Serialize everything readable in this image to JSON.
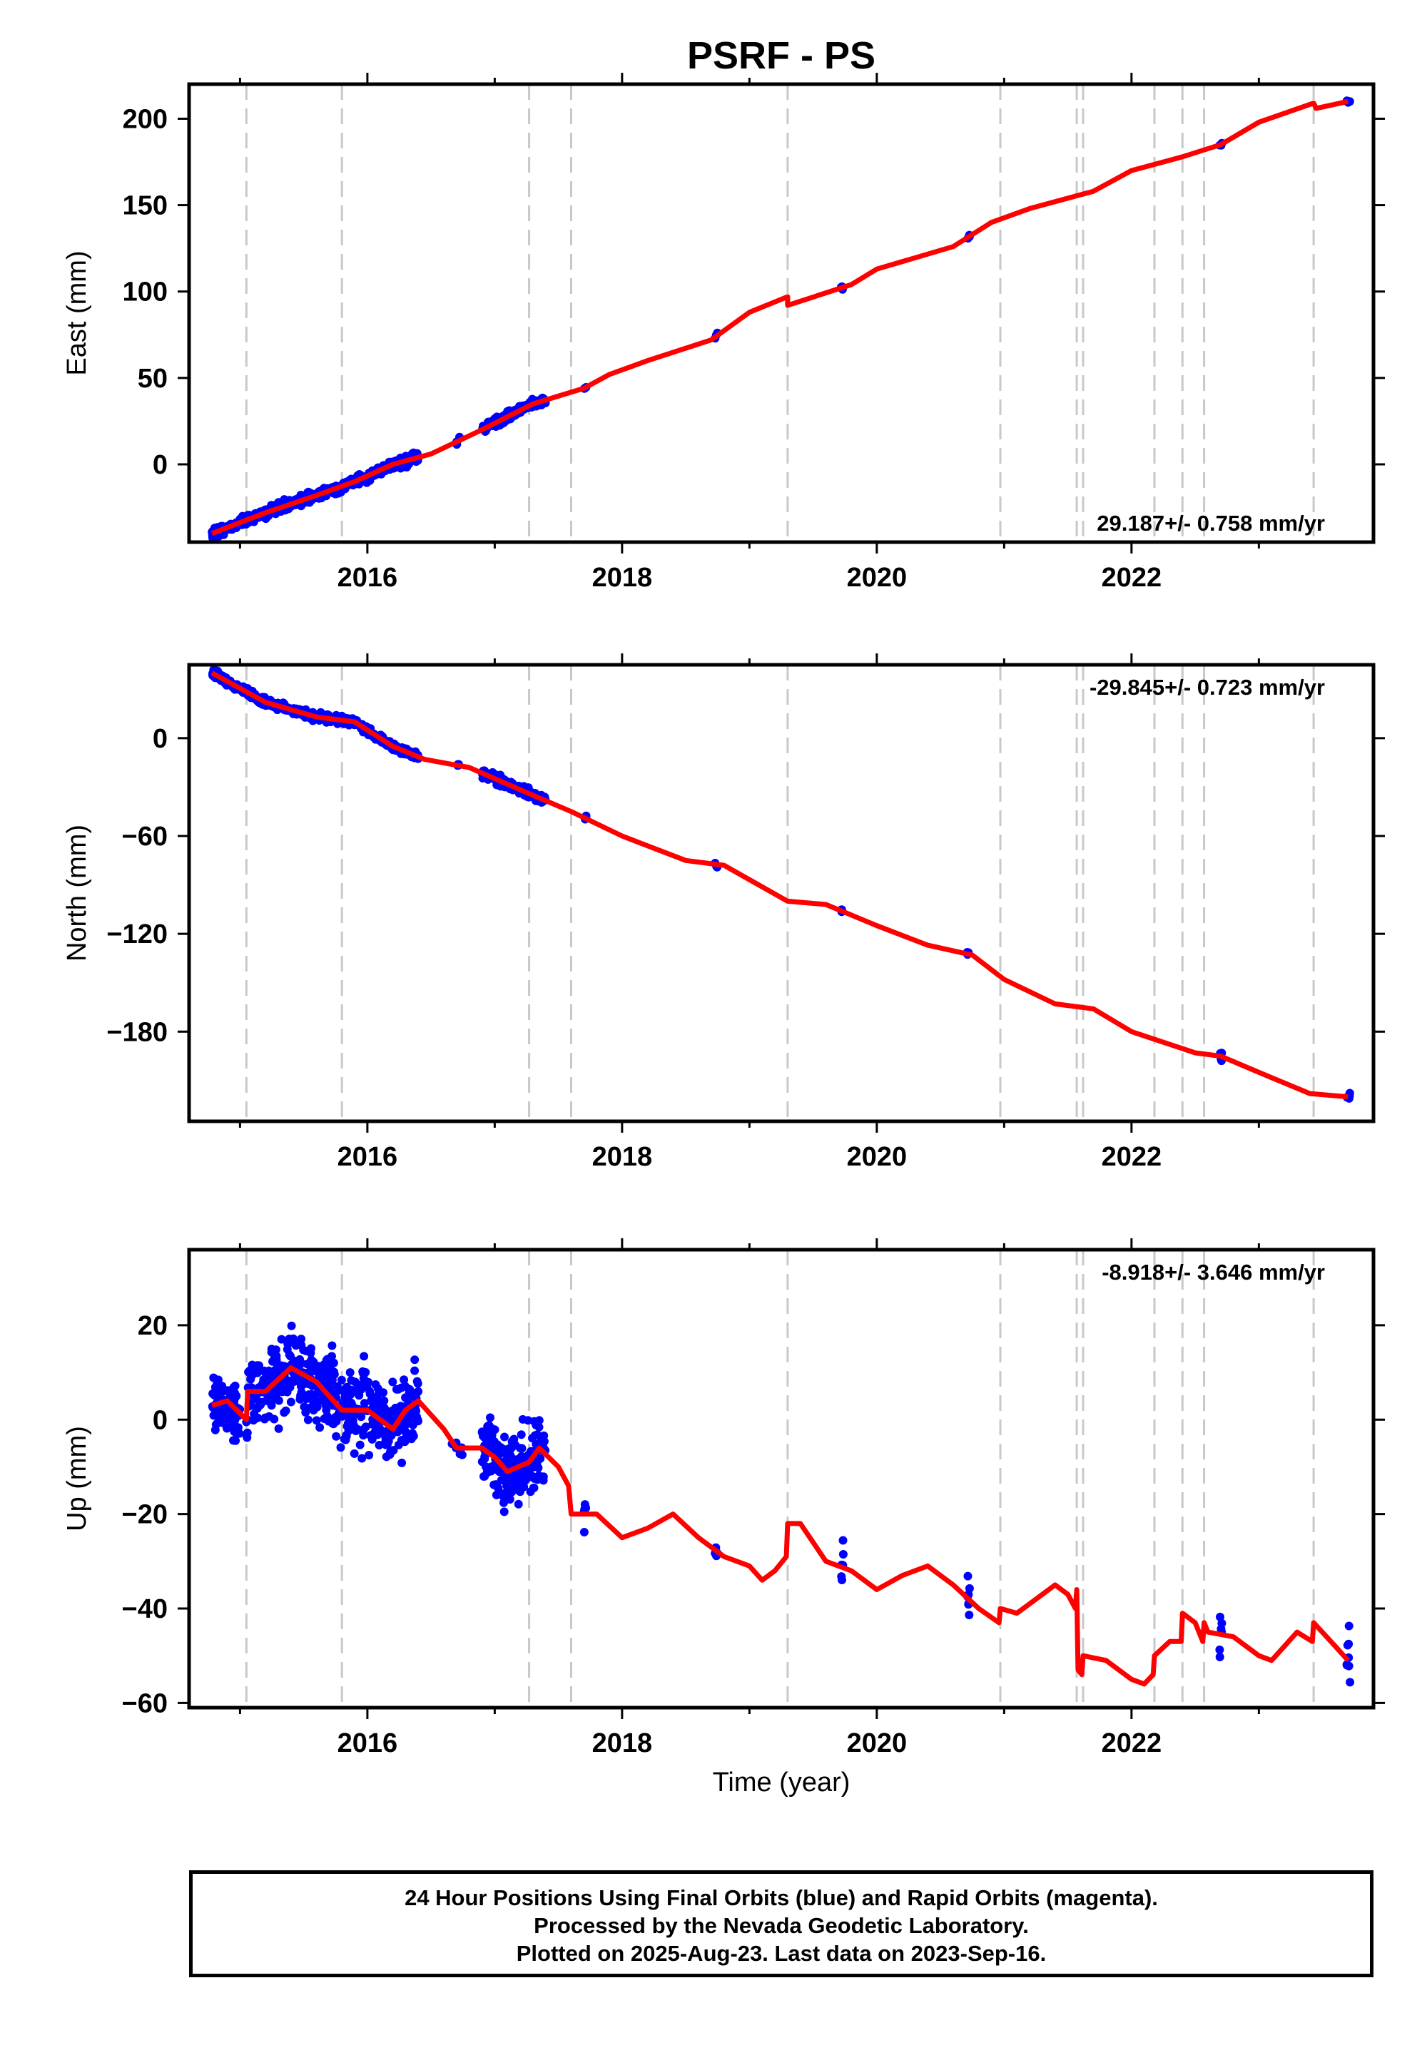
{
  "title": "PSRF - PS",
  "footer": {
    "line1": "24 Hour Positions Using Final Orbits (blue) and Rapid Orbits (magenta).",
    "line2": "Processed by the Nevada Geodetic Laboratory.",
    "line3": "Plotted on 2025-Aug-23. Last data on 2023-Sep-16."
  },
  "colors": {
    "data_points": "#0000ff",
    "model_line": "#ff0000",
    "event_lines": "#c8c8c8",
    "frame": "#000000"
  },
  "chart_data": [
    {
      "type": "scatter",
      "component": "east",
      "ylabel": "East (mm)",
      "xlim": [
        2014.6,
        2023.9
      ],
      "ylim": [
        -45,
        220
      ],
      "x_ticks": [
        2016,
        2018,
        2020,
        2022
      ],
      "y_ticks": [
        0,
        50,
        100,
        150,
        200
      ],
      "grid": false,
      "rate_label": "29.187+/- 0.758 mm/yr",
      "event_lines_x": [
        2015.05,
        2015.8,
        2017.27,
        2017.6,
        2019.3,
        2020.97,
        2021.57,
        2021.62,
        2022.18,
        2022.4,
        2022.57,
        2023.43
      ],
      "model": [
        [
          2014.78,
          -40
        ],
        [
          2015.2,
          -28
        ],
        [
          2015.6,
          -18
        ],
        [
          2015.9,
          -10
        ],
        [
          2016.2,
          0
        ],
        [
          2016.5,
          6
        ],
        [
          2016.9,
          20
        ],
        [
          2017.3,
          35
        ],
        [
          2017.7,
          44
        ],
        [
          2017.9,
          52
        ],
        [
          2018.2,
          60
        ],
        [
          2018.7,
          72
        ],
        [
          2019.0,
          88
        ],
        [
          2019.3,
          97
        ],
        [
          2019.3,
          92
        ],
        [
          2019.8,
          104
        ],
        [
          2020.0,
          113
        ],
        [
          2020.6,
          126
        ],
        [
          2020.9,
          140
        ],
        [
          2021.2,
          148
        ],
        [
          2021.5,
          154
        ],
        [
          2021.7,
          158
        ],
        [
          2022.0,
          170
        ],
        [
          2022.4,
          178
        ],
        [
          2022.7,
          185
        ],
        [
          2023.0,
          198
        ],
        [
          2023.43,
          209
        ],
        [
          2023.45,
          206
        ],
        [
          2023.7,
          210
        ]
      ],
      "points": [
        {
          "range": [
            2014.78,
            2016.4
          ],
          "density": 450,
          "spread": 3.0
        },
        {
          "range": [
            2016.7,
            2016.73
          ],
          "density": 4,
          "spread": 2.0
        },
        {
          "range": [
            2016.9,
            2017.4
          ],
          "density": 200,
          "spread": 2.5
        },
        {
          "range": [
            2017.7,
            2017.72
          ],
          "density": 3,
          "spread": 1.5
        },
        {
          "range": [
            2018.73,
            2018.75
          ],
          "density": 3,
          "spread": 1.5
        },
        {
          "range": [
            2019.72,
            2019.74
          ],
          "density": 3,
          "spread": 1.5
        },
        {
          "range": [
            2020.71,
            2020.73
          ],
          "density": 3,
          "spread": 1.5
        },
        {
          "range": [
            2022.69,
            2022.71
          ],
          "density": 3,
          "spread": 1.5
        },
        {
          "range": [
            2023.69,
            2023.72
          ],
          "density": 3,
          "spread": 1.5
        }
      ]
    },
    {
      "type": "scatter",
      "component": "north",
      "ylabel": "North (mm)",
      "xlim": [
        2014.6,
        2023.9
      ],
      "ylim": [
        -235,
        45
      ],
      "x_ticks": [
        2016,
        2018,
        2020,
        2022
      ],
      "y_ticks": [
        0,
        -60,
        -120,
        -180
      ],
      "grid": false,
      "rate_label": "-29.845+/- 0.723 mm/yr",
      "event_lines_x": [
        2015.05,
        2015.8,
        2017.27,
        2017.6,
        2019.3,
        2020.97,
        2021.57,
        2021.62,
        2022.18,
        2022.4,
        2022.57,
        2023.43
      ],
      "model": [
        [
          2014.78,
          40
        ],
        [
          2015.2,
          22
        ],
        [
          2015.6,
          13
        ],
        [
          2015.9,
          10
        ],
        [
          2016.2,
          -5
        ],
        [
          2016.45,
          -13
        ],
        [
          2016.8,
          -18
        ],
        [
          2017.3,
          -35
        ],
        [
          2017.6,
          -45
        ],
        [
          2018.0,
          -60
        ],
        [
          2018.5,
          -75
        ],
        [
          2018.8,
          -78
        ],
        [
          2019.3,
          -100
        ],
        [
          2019.6,
          -102
        ],
        [
          2020.0,
          -115
        ],
        [
          2020.4,
          -127
        ],
        [
          2020.75,
          -133
        ],
        [
          2021.0,
          -148
        ],
        [
          2021.4,
          -163
        ],
        [
          2021.7,
          -166
        ],
        [
          2022.0,
          -180
        ],
        [
          2022.5,
          -193
        ],
        [
          2022.7,
          -195
        ],
        [
          2023.0,
          -205
        ],
        [
          2023.4,
          -218
        ],
        [
          2023.7,
          -220
        ]
      ],
      "points": [
        {
          "range": [
            2014.78,
            2016.4
          ],
          "density": 450,
          "spread": 2.5
        },
        {
          "range": [
            2016.7,
            2016.73
          ],
          "density": 4,
          "spread": 2.0
        },
        {
          "range": [
            2016.9,
            2017.4
          ],
          "density": 200,
          "spread": 2.5
        },
        {
          "range": [
            2017.7,
            2017.72
          ],
          "density": 3,
          "spread": 2.0
        },
        {
          "range": [
            2018.73,
            2018.75
          ],
          "density": 3,
          "spread": 2.0
        },
        {
          "range": [
            2019.72,
            2019.74
          ],
          "density": 3,
          "spread": 2.0
        },
        {
          "range": [
            2020.71,
            2020.73
          ],
          "density": 3,
          "spread": 2.0
        },
        {
          "range": [
            2022.69,
            2022.71
          ],
          "density": 4,
          "spread": 3.0
        },
        {
          "range": [
            2023.69,
            2023.72
          ],
          "density": 4,
          "spread": 3.0
        }
      ]
    },
    {
      "type": "scatter",
      "component": "up",
      "ylabel": "Up (mm)",
      "xlabel": "Time (year)",
      "xlim": [
        2014.6,
        2023.9
      ],
      "ylim": [
        -61,
        36
      ],
      "x_ticks": [
        2016,
        2018,
        2020,
        2022
      ],
      "y_ticks": [
        20,
        0,
        -20,
        -40,
        -60
      ],
      "grid": false,
      "rate_label": "-8.918+/- 3.646 mm/yr",
      "event_lines_x": [
        2015.05,
        2015.8,
        2017.27,
        2017.6,
        2019.3,
        2020.97,
        2021.57,
        2021.62,
        2022.18,
        2022.4,
        2022.57,
        2023.43
      ],
      "model": [
        [
          2014.78,
          3
        ],
        [
          2014.9,
          4
        ],
        [
          2015.05,
          0
        ],
        [
          2015.06,
          6
        ],
        [
          2015.2,
          6
        ],
        [
          2015.4,
          11
        ],
        [
          2015.6,
          8
        ],
        [
          2015.8,
          2
        ],
        [
          2016.0,
          2
        ],
        [
          2016.1,
          0
        ],
        [
          2016.2,
          -2
        ],
        [
          2016.3,
          2
        ],
        [
          2016.4,
          4
        ],
        [
          2016.6,
          -2
        ],
        [
          2016.7,
          -6
        ],
        [
          2016.9,
          -6
        ],
        [
          2017.0,
          -8
        ],
        [
          2017.1,
          -11
        ],
        [
          2017.27,
          -9
        ],
        [
          2017.35,
          -6
        ],
        [
          2017.5,
          -10
        ],
        [
          2017.58,
          -14
        ],
        [
          2017.6,
          -20
        ],
        [
          2017.8,
          -20
        ],
        [
          2018.0,
          -25
        ],
        [
          2018.2,
          -23
        ],
        [
          2018.4,
          -20
        ],
        [
          2018.6,
          -25
        ],
        [
          2018.8,
          -29
        ],
        [
          2019.0,
          -31
        ],
        [
          2019.1,
          -34
        ],
        [
          2019.2,
          -32
        ],
        [
          2019.29,
          -29
        ],
        [
          2019.3,
          -22
        ],
        [
          2019.4,
          -22
        ],
        [
          2019.6,
          -30
        ],
        [
          2019.8,
          -32
        ],
        [
          2020.0,
          -36
        ],
        [
          2020.2,
          -33
        ],
        [
          2020.4,
          -31
        ],
        [
          2020.6,
          -35
        ],
        [
          2020.8,
          -40
        ],
        [
          2020.96,
          -43
        ],
        [
          2020.97,
          -40
        ],
        [
          2021.1,
          -41
        ],
        [
          2021.2,
          -39
        ],
        [
          2021.4,
          -35
        ],
        [
          2021.5,
          -37
        ],
        [
          2021.56,
          -40
        ],
        [
          2021.57,
          -36
        ],
        [
          2021.58,
          -53
        ],
        [
          2021.61,
          -54
        ],
        [
          2021.62,
          -50
        ],
        [
          2021.8,
          -51
        ],
        [
          2022.0,
          -55
        ],
        [
          2022.1,
          -56
        ],
        [
          2022.17,
          -54
        ],
        [
          2022.18,
          -50
        ],
        [
          2022.3,
          -47
        ],
        [
          2022.39,
          -47
        ],
        [
          2022.4,
          -41
        ],
        [
          2022.5,
          -43
        ],
        [
          2022.56,
          -47
        ],
        [
          2022.57,
          -43
        ],
        [
          2022.6,
          -45
        ],
        [
          2022.8,
          -46
        ],
        [
          2023.0,
          -50
        ],
        [
          2023.1,
          -51
        ],
        [
          2023.2,
          -48
        ],
        [
          2023.3,
          -45
        ],
        [
          2023.42,
          -47
        ],
        [
          2023.43,
          -43
        ],
        [
          2023.6,
          -48
        ],
        [
          2023.7,
          -51
        ]
      ],
      "points": [
        {
          "range": [
            2014.78,
            2015.0
          ],
          "density": 90,
          "spread": 6
        },
        {
          "range": [
            2015.05,
            2016.4
          ],
          "density": 500,
          "spread": 8
        },
        {
          "range": [
            2016.65,
            2016.75
          ],
          "density": 6,
          "spread": 4
        },
        {
          "range": [
            2016.9,
            2017.4
          ],
          "density": 200,
          "spread": 7
        },
        {
          "range": [
            2017.7,
            2017.72
          ],
          "density": 5,
          "spread": 5
        },
        {
          "range": [
            2018.73,
            2018.75
          ],
          "density": 5,
          "spread": 3
        },
        {
          "range": [
            2019.72,
            2019.74
          ],
          "density": 6,
          "spread": 4
        },
        {
          "range": [
            2020.71,
            2020.73
          ],
          "density": 7,
          "spread": 6
        },
        {
          "range": [
            2022.69,
            2022.71
          ],
          "density": 6,
          "spread": 6
        },
        {
          "range": [
            2023.69,
            2023.72
          ],
          "density": 8,
          "spread": 10
        }
      ]
    }
  ]
}
